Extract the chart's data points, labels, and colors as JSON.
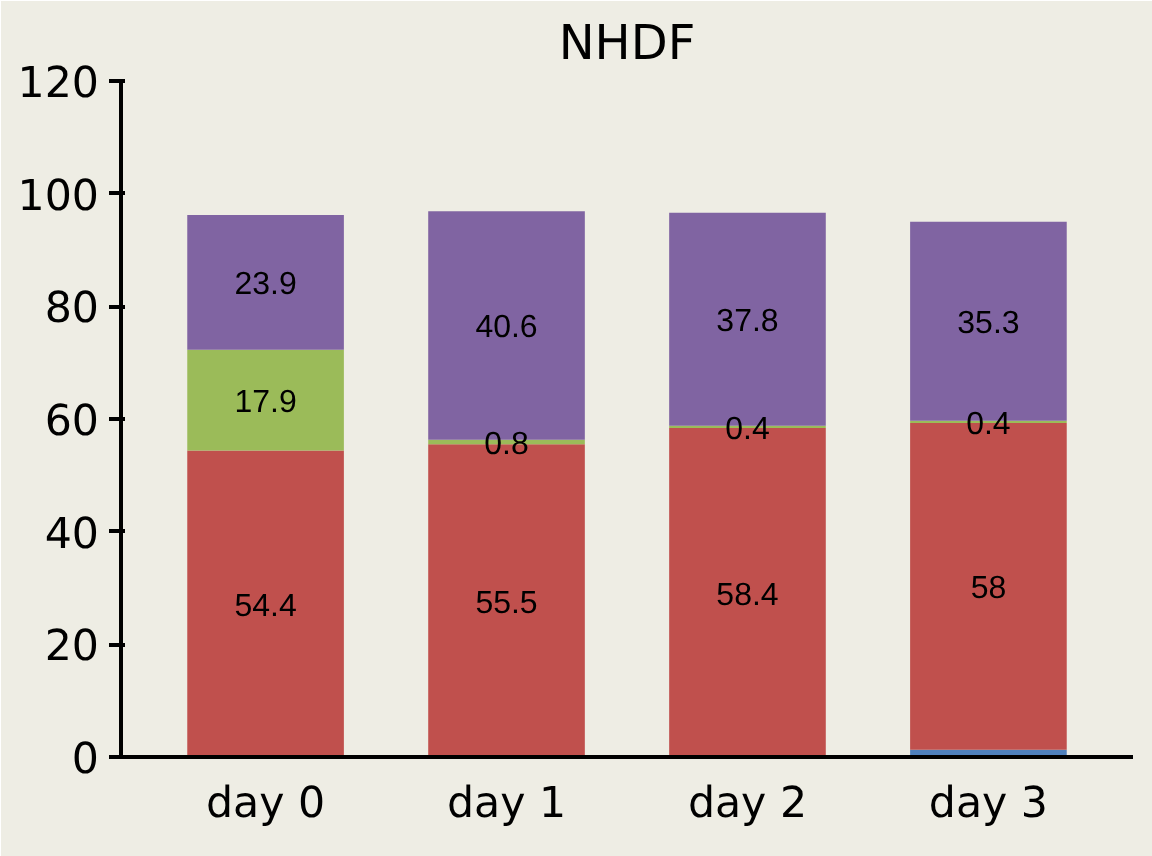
{
  "chart_data": {
    "type": "bar",
    "title": "NHDF",
    "stacked": true,
    "categories": [
      "day 0",
      "day 1",
      "day 2",
      "day 3"
    ],
    "series": [
      {
        "color": "#4f81bd",
        "values": [
          null,
          null,
          null,
          1.3
        ],
        "value_labels": [
          null,
          null,
          null,
          null
        ]
      },
      {
        "color": "#c0504d",
        "values": [
          54.4,
          55.5,
          58.4,
          58
        ],
        "value_labels": [
          "54.4",
          "55.5",
          "58.4",
          "58"
        ]
      },
      {
        "color": "#9bbb59",
        "values": [
          17.9,
          0.8,
          0.4,
          0.4
        ],
        "value_labels": [
          "17.9",
          "0.8",
          "0.4",
          "0.4"
        ]
      },
      {
        "color": "#8064a2",
        "values": [
          23.9,
          40.6,
          37.8,
          35.3
        ],
        "value_labels": [
          "23.9",
          "40.6",
          "37.8",
          "35.3"
        ]
      }
    ],
    "ylim": [
      0,
      120
    ],
    "yticks": [
      0,
      20,
      40,
      60,
      80,
      100,
      120
    ],
    "grid": false
  }
}
